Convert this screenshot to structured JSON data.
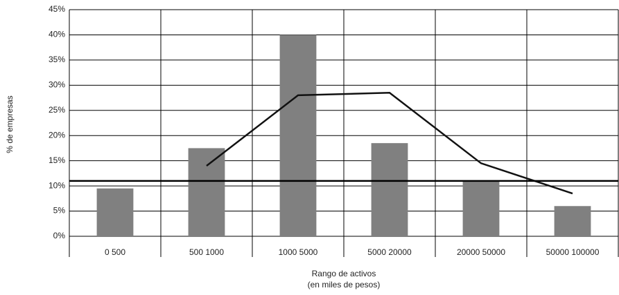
{
  "chart_data": {
    "type": "bar",
    "y_label": "% de empresas",
    "x_label": [
      "Rango de activos",
      "(en miles de pesos)"
    ],
    "categories": [
      "0 500",
      "500 1000",
      "1000 5000",
      "5000 20000",
      "20000 50000",
      "50000 100000"
    ],
    "series": [
      {
        "type": "bar",
        "color": "#808080",
        "values": [
          9.5,
          17.5,
          40,
          18.5,
          11,
          6
        ]
      },
      {
        "type": "line",
        "color": "#111111",
        "values": [
          null,
          14,
          28,
          28.5,
          14.5,
          8.5
        ]
      }
    ],
    "reference_line": 11,
    "ylim": [
      0,
      45
    ],
    "yticks": [
      {
        "value": 0,
        "label": "0%"
      },
      {
        "value": 5,
        "label": "5%"
      },
      {
        "value": 10,
        "label": "10%"
      },
      {
        "value": 15,
        "label": "15%"
      },
      {
        "value": 20,
        "label": "20%"
      },
      {
        "value": 25,
        "label": "25%"
      },
      {
        "value": 30,
        "label": "30%"
      },
      {
        "value": 35,
        "label": "35%"
      },
      {
        "value": 40,
        "label": "40%"
      },
      {
        "value": 45,
        "label": "45%"
      }
    ],
    "grid": true
  }
}
